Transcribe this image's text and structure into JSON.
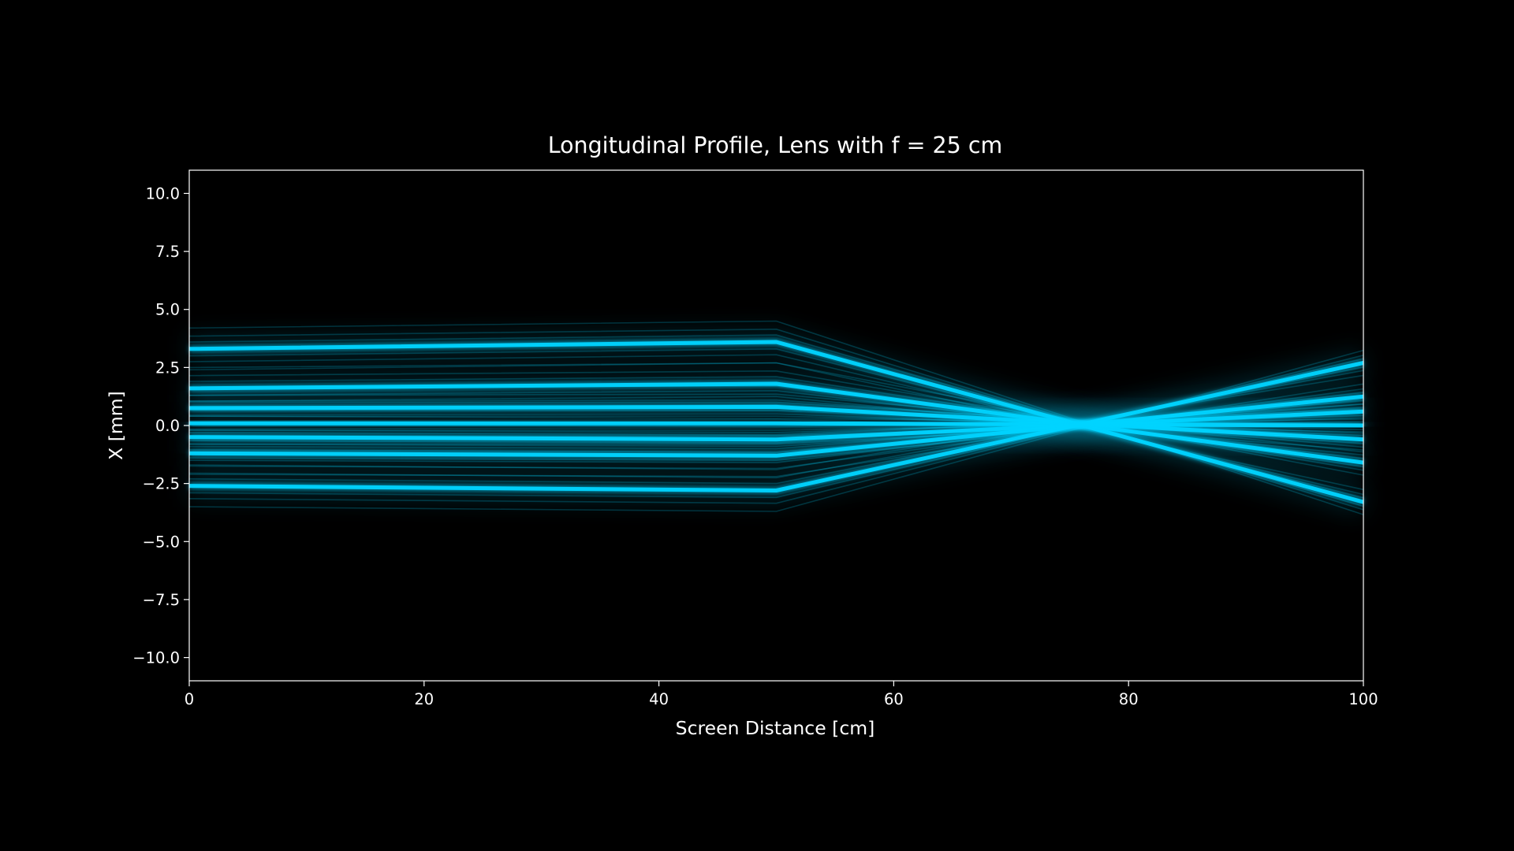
{
  "chart_data": {
    "type": "line",
    "title": "Longitudinal Profile, Lens with f = 25 cm",
    "xlabel": "Screen Distance [cm]",
    "ylabel": "X [mm]",
    "xlim": [
      0,
      100
    ],
    "ylim": [
      -11,
      11
    ],
    "xticks": [
      0,
      20,
      40,
      60,
      80,
      100
    ],
    "yticks": [
      10.0,
      7.5,
      5.0,
      2.5,
      0.0,
      -2.5,
      -5.0,
      -7.5,
      -10.0
    ],
    "xtick_labels": [
      "0",
      "20",
      "40",
      "60",
      "80",
      "100"
    ],
    "ytick_labels": [
      "10.0",
      "7.5",
      "5.0",
      "2.5",
      "0.0",
      "−2.5",
      "−5.0",
      "−7.5",
      "−10.0"
    ],
    "lens_position_cm": 50,
    "focal_length_cm": 25,
    "grid": false,
    "background": "#000000",
    "beam_color": "#00d4ff",
    "beams": [
      {
        "x": [
          0,
          50,
          100
        ],
        "y": [
          3.3,
          3.6,
          -3.3
        ]
      },
      {
        "x": [
          0,
          50,
          100
        ],
        "y": [
          1.6,
          1.8,
          -1.6
        ]
      },
      {
        "x": [
          0,
          50,
          100
        ],
        "y": [
          0.75,
          0.8,
          -0.6
        ]
      },
      {
        "x": [
          0,
          50,
          100
        ],
        "y": [
          0.1,
          0.1,
          0.0
        ]
      },
      {
        "x": [
          0,
          50,
          100
        ],
        "y": [
          -0.5,
          -0.6,
          0.6
        ]
      },
      {
        "x": [
          0,
          50,
          100
        ],
        "y": [
          -1.2,
          -1.3,
          1.25
        ]
      },
      {
        "x": [
          0,
          50,
          100
        ],
        "y": [
          -2.6,
          -2.8,
          2.7
        ]
      }
    ]
  }
}
